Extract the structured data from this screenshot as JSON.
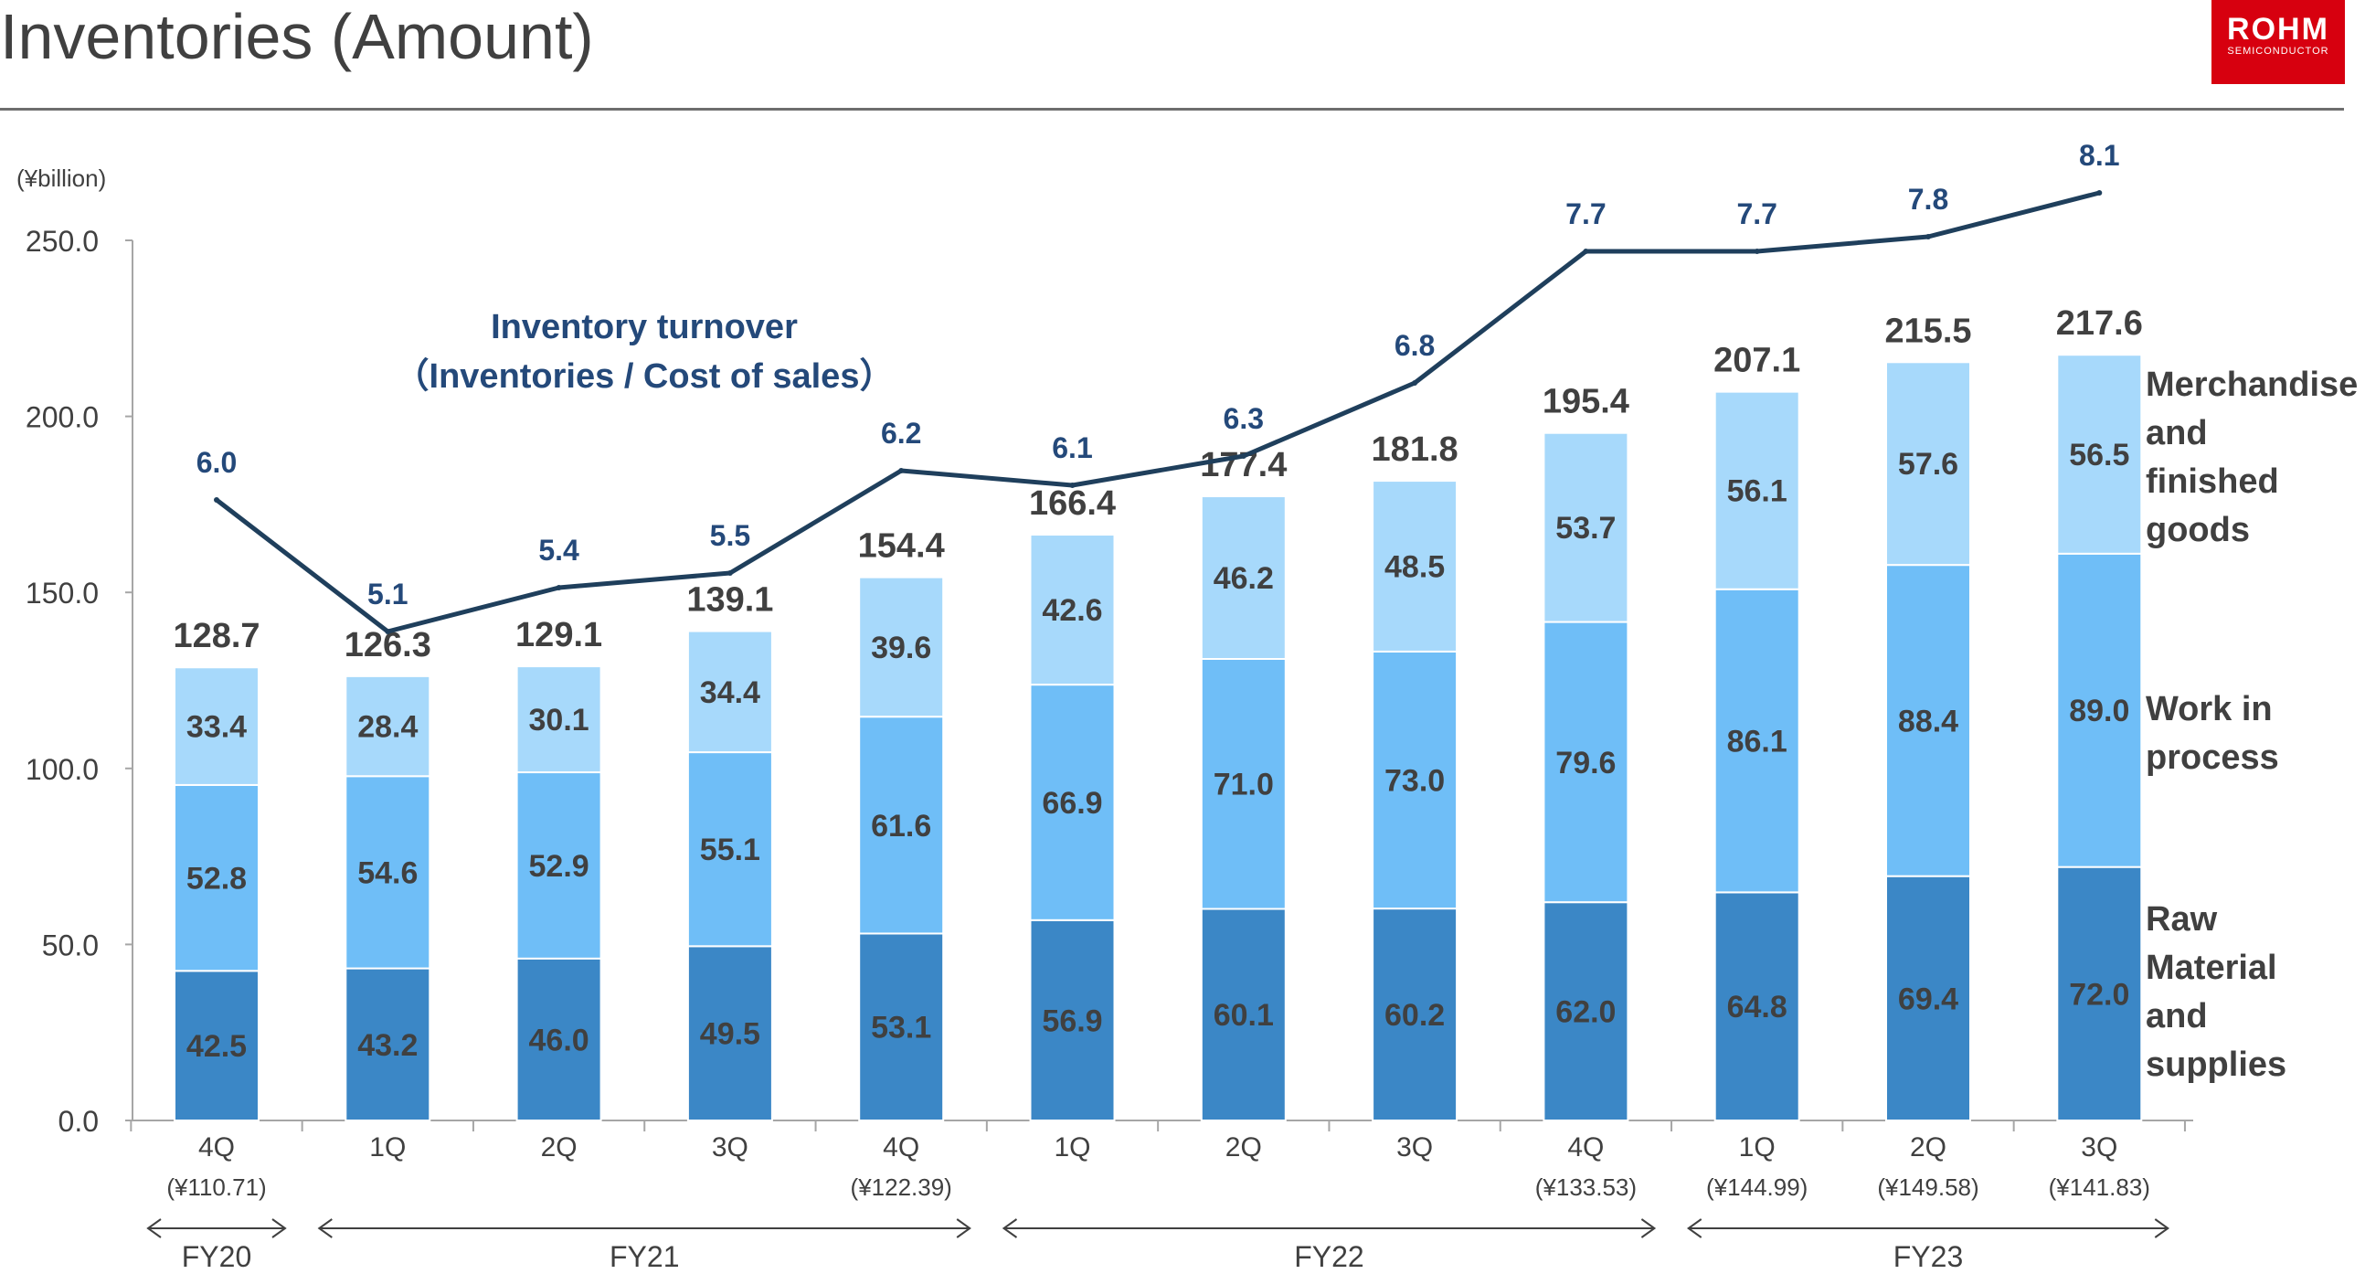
{
  "header": {
    "title": "Inventories (Amount)",
    "logo_brand": "ROHM",
    "logo_sub": "SEMICONDUCTOR"
  },
  "colors": {
    "raw": "#3b87c6",
    "wip": "#6fbef7",
    "goods": "#a7d9fb",
    "line": "#1f3f5c",
    "turnover_text": "#24497a",
    "axis": "#a6a6a6"
  },
  "chart_data": {
    "type": "bar",
    "stacked": true,
    "unit_label": "(¥billion)",
    "ylim": [
      0,
      250
    ],
    "y_ticks": [
      "0.0",
      "50.0",
      "100.0",
      "150.0",
      "200.0",
      "250.0"
    ],
    "categories": [
      "4Q",
      "1Q",
      "2Q",
      "3Q",
      "4Q",
      "1Q",
      "2Q",
      "3Q",
      "4Q",
      "1Q",
      "2Q",
      "3Q"
    ],
    "fx_notes": [
      "(¥110.71)",
      "",
      "",
      "",
      "(¥122.39)",
      "",
      "",
      "",
      "(¥133.53)",
      "(¥144.99)",
      "(¥149.58)",
      "(¥141.83)"
    ],
    "series": [
      {
        "name": "Raw Material and supplies",
        "values": [
          42.5,
          43.2,
          46.0,
          49.5,
          53.1,
          56.9,
          60.1,
          60.2,
          62.0,
          64.8,
          69.4,
          72.0
        ]
      },
      {
        "name": "Work in process",
        "values": [
          52.8,
          54.6,
          52.9,
          55.1,
          61.6,
          66.9,
          71.0,
          73.0,
          79.6,
          86.1,
          88.4,
          89.0
        ]
      },
      {
        "name": "Merchandise and finished goods",
        "values": [
          33.4,
          28.4,
          30.1,
          34.4,
          39.6,
          42.6,
          46.2,
          48.5,
          53.7,
          56.1,
          57.6,
          56.5
        ]
      }
    ],
    "totals": [
      "128.7",
      "126.3",
      "129.1",
      "139.1",
      "154.4",
      "166.4",
      "177.4",
      "181.8",
      "195.4",
      "207.1",
      "215.5",
      "217.6"
    ],
    "turnover": {
      "title_line1": "Inventory turnover",
      "title_line2": "（Inventories / Cost of sales）",
      "values": [
        6.0,
        5.1,
        5.4,
        5.5,
        6.2,
        6.1,
        6.3,
        6.8,
        7.7,
        7.7,
        7.8,
        8.1
      ],
      "labels": [
        "6.0",
        "5.1",
        "5.4",
        "5.5",
        "6.2",
        "6.1",
        "6.3",
        "6.8",
        "7.7",
        "7.7",
        "7.8",
        "8.1"
      ]
    },
    "legend_lines": {
      "goods": [
        "Merchandise",
        "and",
        "finished",
        "goods"
      ],
      "wip": [
        "Work in",
        "process"
      ],
      "raw": [
        "Raw",
        "Material",
        "and",
        "supplies"
      ]
    },
    "fiscal_years": [
      {
        "label": "FY20",
        "start": 0,
        "end": 0
      },
      {
        "label": "FY21",
        "start": 1,
        "end": 4
      },
      {
        "label": "FY22",
        "start": 5,
        "end": 8
      },
      {
        "label": "FY23",
        "start": 9,
        "end": 11
      }
    ]
  }
}
